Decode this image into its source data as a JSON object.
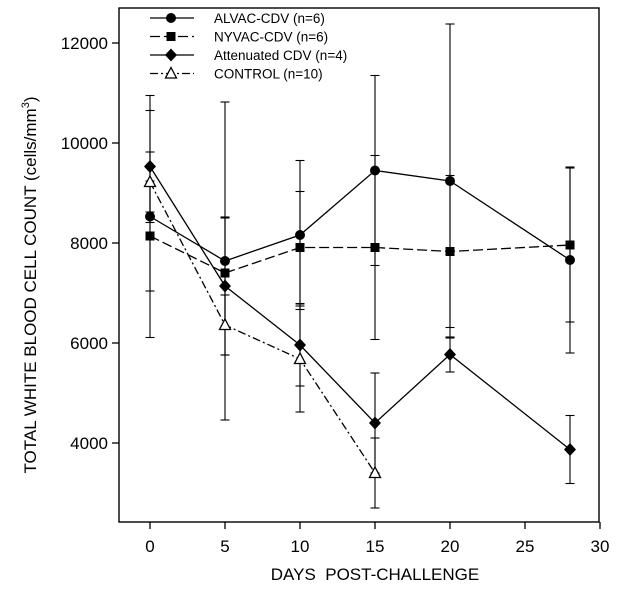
{
  "chart_data": {
    "type": "line",
    "title": "",
    "xlabel": "DAYS  POST-CHALLENGE",
    "ylabel_main": "TOTAL WHITE BLOOD CELL COUNT (cells/mm",
    "ylabel_sup": "3",
    "ylabel_end": ")",
    "xlim": [
      -5,
      30
    ],
    "ylim": [
      2200,
      12700
    ],
    "x_ticks": [
      0,
      5,
      10,
      15,
      20,
      25,
      30
    ],
    "y_ticks": [
      4000,
      6000,
      8000,
      10000,
      12000
    ],
    "grid": false,
    "legend_position": "top-left",
    "series": [
      {
        "name": "ALVAC-CDV (n=6)",
        "marker": "circle",
        "line": "solid",
        "x": [
          0,
          5,
          10,
          15,
          20,
          28
        ],
        "y": [
          8530,
          7640,
          8160,
          9450,
          9240,
          7660
        ],
        "err": [
          2420,
          3180,
          1490,
          1900,
          3140,
          1860
        ]
      },
      {
        "name": "NYVAC-CDV (n=6)",
        "marker": "square",
        "line": "dashed",
        "x": [
          0,
          5,
          10,
          15,
          20,
          28
        ],
        "y": [
          8140,
          7400,
          7910,
          7910,
          7830,
          7960
        ],
        "err": [
          1100,
          1100,
          1120,
          1840,
          1520,
          1540
        ]
      },
      {
        "name": "Attenuated CDV (n=4)",
        "marker": "diamond",
        "line": "solid",
        "x": [
          0,
          5,
          10,
          15,
          20,
          28
        ],
        "y": [
          9530,
          7140,
          5960,
          4400,
          5770,
          3870
        ],
        "err": [
          1120,
          1380,
          820,
          1000,
          350,
          680
        ]
      },
      {
        "name": "CONTROL (n=10)",
        "marker": "triangle-open",
        "line": "dashdot",
        "x": [
          0,
          5,
          10,
          15
        ],
        "y": [
          9220,
          6360,
          5680,
          3400
        ],
        "err": [
          600,
          600,
          1060,
          700
        ]
      }
    ]
  }
}
